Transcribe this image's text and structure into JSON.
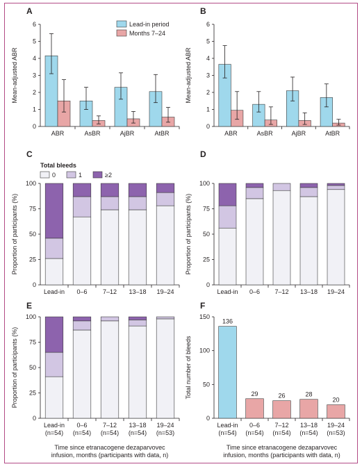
{
  "colors": {
    "lead_in": "#9fd8ec",
    "months": "#e8a6a6",
    "zero": "#f1f1f6",
    "one": "#d2c6e3",
    "two_plus": "#8d63ad",
    "bar_stroke": "#3a3a3a",
    "frame": "#b24a86"
  },
  "chart_data": [
    {
      "panel": "A",
      "type": "bar",
      "ylabel": "Mean-adjusted ABR",
      "ylim": [
        0,
        6
      ],
      "yticks": [
        "0",
        "1",
        "2",
        "3",
        "4",
        "5",
        "6"
      ],
      "categories": [
        "ABR",
        "AsBR",
        "AjBR",
        "AtBR"
      ],
      "legend": "top-right",
      "series": [
        {
          "name": "Lead-in period",
          "values": [
            4.15,
            1.5,
            2.3,
            2.05
          ],
          "err_high": [
            5.45,
            2.3,
            3.15,
            3.05
          ],
          "err_low": [
            3.1,
            1.0,
            1.6,
            1.4
          ]
        },
        {
          "name": "Months 7–24",
          "values": [
            1.5,
            0.35,
            0.45,
            0.55
          ],
          "err_high": [
            2.75,
            0.62,
            0.88,
            1.12
          ],
          "err_low": [
            0.85,
            0.15,
            0.2,
            0.25
          ]
        }
      ]
    },
    {
      "panel": "B",
      "type": "bar",
      "ylabel": "Mean-adjusted ABR",
      "ylim": [
        0,
        6
      ],
      "yticks": [
        "0",
        "1",
        "2",
        "3",
        "4",
        "5",
        "6"
      ],
      "categories": [
        "ABR",
        "AsBR",
        "AjBR",
        "AtBR"
      ],
      "series": [
        {
          "name": "Lead-in period",
          "values": [
            3.65,
            1.3,
            2.1,
            1.7
          ],
          "err_high": [
            4.75,
            2.05,
            2.9,
            2.5
          ],
          "err_low": [
            2.85,
            0.85,
            1.5,
            1.15
          ]
        },
        {
          "name": "Months 7–24",
          "values": [
            0.95,
            0.38,
            0.35,
            0.2
          ],
          "err_high": [
            2.05,
            1.15,
            0.8,
            0.42
          ],
          "err_low": [
            0.42,
            0.12,
            0.12,
            0.08
          ]
        }
      ]
    },
    {
      "panel": "C",
      "type": "bar",
      "stacked": true,
      "ylabel": "Proportion of participants (%)",
      "ylim": [
        0,
        100
      ],
      "yticks": [
        "0",
        "25",
        "50",
        "75",
        "100"
      ],
      "legend_title": "Total bleeds",
      "categories": [
        "Lead-in",
        "0–6",
        "7–12",
        "13–18",
        "19–24"
      ],
      "series": [
        {
          "name": "0",
          "values": [
            26,
            67,
            74,
            74,
            78
          ]
        },
        {
          "name": "1",
          "values": [
            20,
            20,
            13,
            13,
            13
          ]
        },
        {
          "name": "≥2",
          "values": [
            54,
            13,
            13,
            13,
            9
          ]
        }
      ]
    },
    {
      "panel": "D",
      "type": "bar",
      "stacked": true,
      "ylabel": "Proportion of participants (%)",
      "ylim": [
        0,
        100
      ],
      "yticks": [
        "0",
        "25",
        "50",
        "75",
        "100"
      ],
      "categories": [
        "Lead-in",
        "0–6",
        "7–12",
        "13–18",
        "19–24"
      ],
      "series": [
        {
          "name": "0",
          "values": [
            56,
            85,
            93,
            87,
            94
          ]
        },
        {
          "name": "1",
          "values": [
            22,
            11,
            7,
            9,
            4
          ]
        },
        {
          "name": "≥2",
          "values": [
            22,
            4,
            0,
            4,
            2
          ]
        }
      ]
    },
    {
      "panel": "E",
      "type": "bar",
      "stacked": true,
      "ylabel": "Proportion of participants (%)",
      "ylim": [
        0,
        100
      ],
      "yticks": [
        "0",
        "25",
        "50",
        "75",
        "100"
      ],
      "categories": [
        "Lead-in\n(n=54)",
        "0–6\n(n=54)",
        "7–12\n(n=54)",
        "13–18\n(n=54)",
        "19–24\n(n=53)"
      ],
      "xlabel": "Time since etranacogene dezaparvovec\ninfusion, months (participants with data, n)",
      "series": [
        {
          "name": "0",
          "values": [
            41,
            87,
            96,
            91,
            98
          ]
        },
        {
          "name": "1",
          "values": [
            24,
            9,
            4,
            6,
            2
          ]
        },
        {
          "name": "≥2",
          "values": [
            35,
            4,
            0,
            3,
            0
          ]
        }
      ]
    },
    {
      "panel": "F",
      "type": "bar",
      "ylabel": "Total number of bleeds",
      "ylim": [
        0,
        150
      ],
      "yticks": [
        "0",
        "50",
        "100",
        "150"
      ],
      "categories": [
        "Lead-in\n(n=54)",
        "0–6\n(n=54)",
        "7–12\n(n=54)",
        "13–18\n(n=54)",
        "19–24\n(n=53)"
      ],
      "xlabel": "Time since etranacogene dezaparvovec\ninfusion, months (participants with data, n)",
      "values": [
        136,
        29,
        26,
        28,
        20
      ],
      "labels": [
        "136",
        "29",
        "26",
        "28",
        "20"
      ]
    }
  ]
}
